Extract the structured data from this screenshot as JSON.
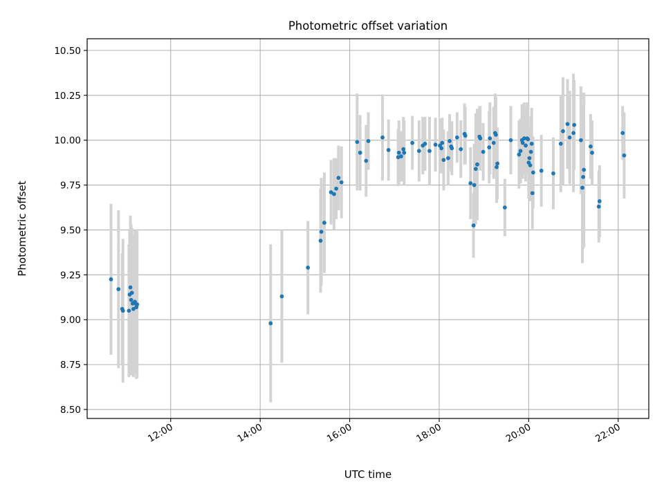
{
  "chart_data": {
    "type": "scatter",
    "title": "Photometric offset variation",
    "xlabel": "UTC time",
    "ylabel": "Photometric offset",
    "x_unit": "hours",
    "xlim": [
      "10:08",
      "22:41"
    ],
    "ylim": [
      8.45,
      10.565
    ],
    "x_ticks": [
      "12:00",
      "14:00",
      "16:00",
      "18:00",
      "20:00",
      "22:00"
    ],
    "y_ticks": [
      "8.50",
      "8.75",
      "9.00",
      "9.25",
      "9.50",
      "9.75",
      "10.00",
      "10.25",
      "10.50"
    ],
    "grid": true,
    "colors": {
      "marker": "#1f77b4",
      "errorbar": "#d3d3d3",
      "grid": "#b0b0b0"
    },
    "points": [
      {
        "x": "10:40",
        "y": 9.225,
        "err": 0.42
      },
      {
        "x": "10:50",
        "y": 9.17,
        "err": 0.44
      },
      {
        "x": "10:55",
        "y": 9.06,
        "err": 0.31
      },
      {
        "x": "10:56",
        "y": 9.05,
        "err": 0.4
      },
      {
        "x": "11:04",
        "y": 9.05,
        "err": 0.37
      },
      {
        "x": "11:05",
        "y": 9.14,
        "err": 0.36
      },
      {
        "x": "11:06",
        "y": 9.18,
        "err": 0.4
      },
      {
        "x": "11:07",
        "y": 9.11,
        "err": 0.42
      },
      {
        "x": "11:08",
        "y": 9.15,
        "err": 0.36
      },
      {
        "x": "11:09",
        "y": 9.09,
        "err": 0.38
      },
      {
        "x": "11:10",
        "y": 9.06,
        "err": 0.38
      },
      {
        "x": "11:12",
        "y": 9.1,
        "err": 0.4
      },
      {
        "x": "11:13",
        "y": 9.09,
        "err": 0.37
      },
      {
        "x": "11:14",
        "y": 9.07,
        "err": 0.4
      },
      {
        "x": "11:15",
        "y": 9.085,
        "err": 0.41
      },
      {
        "x": "14:14",
        "y": 8.98,
        "err": 0.44
      },
      {
        "x": "14:29",
        "y": 9.13,
        "err": 0.37
      },
      {
        "x": "15:04",
        "y": 9.29,
        "err": 0.26
      },
      {
        "x": "15:21",
        "y": 9.44,
        "err": 0.29
      },
      {
        "x": "15:22",
        "y": 9.49,
        "err": 0.3
      },
      {
        "x": "15:26",
        "y": 9.54,
        "err": 0.28
      },
      {
        "x": "15:35",
        "y": 9.71,
        "err": 0.18
      },
      {
        "x": "15:39",
        "y": 9.7,
        "err": 0.2
      },
      {
        "x": "15:42",
        "y": 9.73,
        "err": 0.17
      },
      {
        "x": "15:45",
        "y": 9.79,
        "err": 0.18
      },
      {
        "x": "15:49",
        "y": 9.765,
        "err": 0.2
      },
      {
        "x": "16:10",
        "y": 9.99,
        "err": 0.27
      },
      {
        "x": "16:14",
        "y": 9.93,
        "err": 0.21
      },
      {
        "x": "16:22",
        "y": 9.885,
        "err": 0.2
      },
      {
        "x": "16:25",
        "y": 9.995,
        "err": 0.16
      },
      {
        "x": "16:44",
        "y": 10.015,
        "err": 0.24
      },
      {
        "x": "16:52",
        "y": 9.945,
        "err": 0.17
      },
      {
        "x": "17:05",
        "y": 9.905,
        "err": 0.16
      },
      {
        "x": "17:06",
        "y": 9.93,
        "err": 0.18
      },
      {
        "x": "17:09",
        "y": 9.91,
        "err": 0.14
      },
      {
        "x": "17:12",
        "y": 9.95,
        "err": 0.18
      },
      {
        "x": "17:13",
        "y": 9.93,
        "err": 0.18
      },
      {
        "x": "17:24",
        "y": 9.985,
        "err": 0.15
      },
      {
        "x": "17:33",
        "y": 9.94,
        "err": 0.17
      },
      {
        "x": "17:38",
        "y": 9.97,
        "err": 0.16
      },
      {
        "x": "17:41",
        "y": 9.98,
        "err": 0.15
      },
      {
        "x": "17:47",
        "y": 9.94,
        "err": 0.19
      },
      {
        "x": "17:55",
        "y": 9.975,
        "err": 0.15
      },
      {
        "x": "18:01",
        "y": 9.97,
        "err": 0.15
      },
      {
        "x": "18:03",
        "y": 9.955,
        "err": 0.14
      },
      {
        "x": "18:04",
        "y": 9.985,
        "err": 0.14
      },
      {
        "x": "18:06",
        "y": 9.89,
        "err": 0.17
      },
      {
        "x": "18:12",
        "y": 9.9,
        "err": 0.15
      },
      {
        "x": "18:14",
        "y": 9.995,
        "err": 0.15
      },
      {
        "x": "18:16",
        "y": 9.965,
        "err": 0.14
      },
      {
        "x": "18:17",
        "y": 9.955,
        "err": 0.15
      },
      {
        "x": "18:24",
        "y": 10.015,
        "err": 0.14
      },
      {
        "x": "18:29",
        "y": 9.95,
        "err": 0.16
      },
      {
        "x": "18:34",
        "y": 10.035,
        "err": 0.17
      },
      {
        "x": "18:35",
        "y": 10.025,
        "err": 0.16
      },
      {
        "x": "18:42",
        "y": 9.76,
        "err": 0.2
      },
      {
        "x": "18:46",
        "y": 9.525,
        "err": 0.18
      },
      {
        "x": "18:47",
        "y": 9.75,
        "err": 0.23
      },
      {
        "x": "18:49",
        "y": 9.84,
        "err": 0.31
      },
      {
        "x": "18:51",
        "y": 9.865,
        "err": 0.31
      },
      {
        "x": "18:54",
        "y": 10.02,
        "err": 0.17
      },
      {
        "x": "18:55",
        "y": 10.01,
        "err": 0.18
      },
      {
        "x": "18:59",
        "y": 9.935,
        "err": 0.16
      },
      {
        "x": "19:07",
        "y": 9.96,
        "err": 0.2
      },
      {
        "x": "19:08",
        "y": 10.01,
        "err": 0.2
      },
      {
        "x": "19:13",
        "y": 9.985,
        "err": 0.2
      },
      {
        "x": "19:15",
        "y": 10.04,
        "err": 0.22
      },
      {
        "x": "19:16",
        "y": 10.03,
        "err": 0.21
      },
      {
        "x": "19:17",
        "y": 9.85,
        "err": 0.2
      },
      {
        "x": "19:18",
        "y": 9.87,
        "err": 0.2
      },
      {
        "x": "19:28",
        "y": 9.625,
        "err": 0.16
      },
      {
        "x": "19:36",
        "y": 10.0,
        "err": 0.19
      },
      {
        "x": "19:47",
        "y": 9.92,
        "err": 0.19
      },
      {
        "x": "19:49",
        "y": 9.94,
        "err": 0.18
      },
      {
        "x": "19:51",
        "y": 10.0,
        "err": 0.2
      },
      {
        "x": "19:52",
        "y": 9.985,
        "err": 0.2
      },
      {
        "x": "19:54",
        "y": 10.01,
        "err": 0.2
      },
      {
        "x": "19:56",
        "y": 9.97,
        "err": 0.2
      },
      {
        "x": "19:58",
        "y": 10.01,
        "err": 0.2
      },
      {
        "x": "19:59",
        "y": 10.005,
        "err": 0.2
      },
      {
        "x": "20:00",
        "y": 9.875,
        "err": 0.2
      },
      {
        "x": "20:01",
        "y": 9.9,
        "err": 0.18
      },
      {
        "x": "20:02",
        "y": 9.86,
        "err": 0.2
      },
      {
        "x": "20:03",
        "y": 9.935,
        "err": 0.2
      },
      {
        "x": "20:04",
        "y": 9.98,
        "err": 0.2
      },
      {
        "x": "20:05",
        "y": 9.705,
        "err": 0.2
      },
      {
        "x": "20:06",
        "y": 9.82,
        "err": 0.2
      },
      {
        "x": "20:17",
        "y": 9.83,
        "err": 0.2
      },
      {
        "x": "20:33",
        "y": 9.815,
        "err": 0.2
      },
      {
        "x": "20:43",
        "y": 9.98,
        "err": 0.27
      },
      {
        "x": "20:46",
        "y": 10.05,
        "err": 0.3
      },
      {
        "x": "20:52",
        "y": 10.09,
        "err": 0.25
      },
      {
        "x": "20:55",
        "y": 10.015,
        "err": 0.26
      },
      {
        "x": "21:00",
        "y": 10.04,
        "err": 0.33
      },
      {
        "x": "21:01",
        "y": 10.085,
        "err": 0.25
      },
      {
        "x": "21:10",
        "y": 10.0,
        "err": 0.3
      },
      {
        "x": "21:12",
        "y": 9.735,
        "err": 0.42
      },
      {
        "x": "21:13",
        "y": 9.795,
        "err": 0.4
      },
      {
        "x": "21:14",
        "y": 9.835,
        "err": 0.43
      },
      {
        "x": "21:23",
        "y": 9.965,
        "err": 0.18
      },
      {
        "x": "21:25",
        "y": 9.93,
        "err": 0.18
      },
      {
        "x": "21:34",
        "y": 9.63,
        "err": 0.2
      },
      {
        "x": "21:35",
        "y": 9.66,
        "err": 0.2
      },
      {
        "x": "22:06",
        "y": 10.04,
        "err": 0.15
      },
      {
        "x": "22:08",
        "y": 9.915,
        "err": 0.24
      }
    ]
  }
}
